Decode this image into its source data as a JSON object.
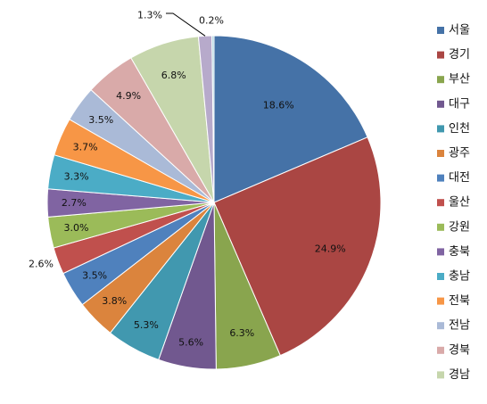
{
  "chart_data": {
    "type": "pie",
    "title": "",
    "legend_position": "right",
    "start_angle_deg": 0,
    "direction": "clockwise",
    "slices": [
      {
        "name": "서울",
        "value": 18.6,
        "label": "18.6%",
        "color": "#4572A7"
      },
      {
        "name": "경기",
        "value": 24.9,
        "label": "24.9%",
        "color": "#AA4643"
      },
      {
        "name": "부산",
        "value": 6.3,
        "label": "6.3%",
        "color": "#89A54E"
      },
      {
        "name": "대구",
        "value": 5.6,
        "label": "5.6%",
        "color": "#71588F"
      },
      {
        "name": "인천",
        "value": 5.3,
        "label": "5.3%",
        "color": "#4198AF"
      },
      {
        "name": "광주",
        "value": 3.8,
        "label": "3.8%",
        "color": "#DB843D"
      },
      {
        "name": "대전",
        "value": 3.5,
        "label": "3.5%",
        "color": "#4F81BD"
      },
      {
        "name": "울산",
        "value": 2.6,
        "label": "2.6%",
        "color": "#C0504D"
      },
      {
        "name": "강원",
        "value": 3.0,
        "label": "3.0%",
        "color": "#9BBB59"
      },
      {
        "name": "충북",
        "value": 2.7,
        "label": "2.7%",
        "color": "#8064A2"
      },
      {
        "name": "충남",
        "value": 3.3,
        "label": "3.3%",
        "color": "#4BACC6"
      },
      {
        "name": "전북",
        "value": 3.7,
        "label": "3.7%",
        "color": "#F79646"
      },
      {
        "name": "전남",
        "value": 3.5,
        "label": "3.5%",
        "color": "#AABAD7"
      },
      {
        "name": "경북",
        "value": 4.9,
        "label": "4.9%",
        "color": "#D9AAA9"
      },
      {
        "name": "경남",
        "value": 6.8,
        "label": "6.8%",
        "color": "#C6D6AC"
      },
      {
        "name": "",
        "value": 1.3,
        "label": "1.3%",
        "color": "#B7AACB"
      },
      {
        "name": "",
        "value": 0.2,
        "label": "0.2%",
        "color": "#A9D2DE"
      }
    ]
  }
}
